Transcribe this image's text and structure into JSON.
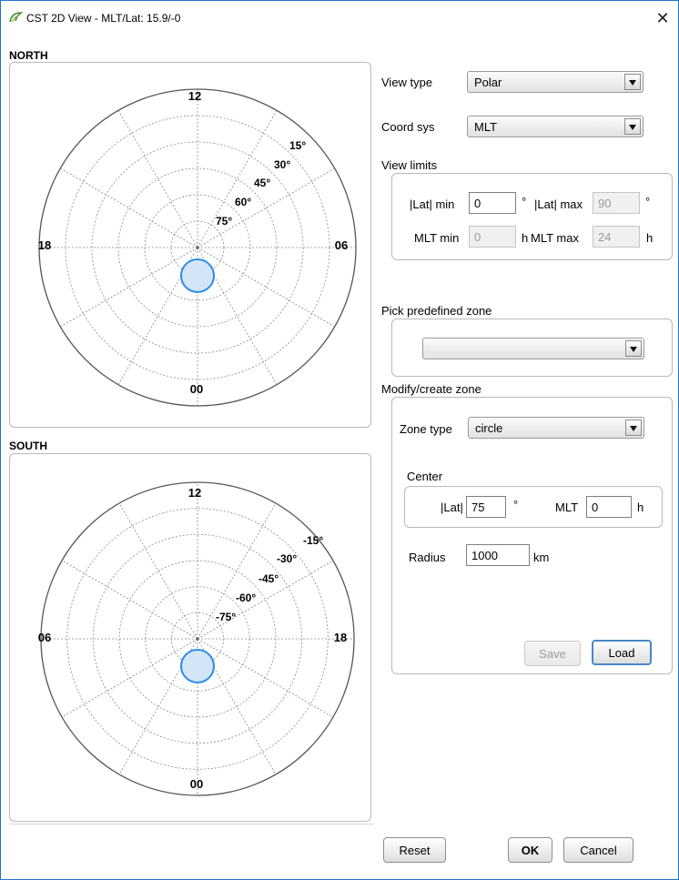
{
  "window": {
    "title": "CST 2D View - MLT/Lat: 15.9/-0",
    "close_symbol": "✕"
  },
  "north": {
    "label": "NORTH",
    "top_label": "12",
    "left_label": "18",
    "right_label": "06",
    "bottom_label": "00",
    "lat_labels": [
      "15°",
      "30°",
      "45°",
      "60°",
      "75°"
    ]
  },
  "south": {
    "label": "SOUTH",
    "top_label": "12",
    "left_label": "06",
    "right_label": "18",
    "bottom_label": "00",
    "lat_labels": [
      "-15°",
      "-30°",
      "-45°",
      "-60°",
      "-75°"
    ]
  },
  "controls": {
    "view_type_label": "View type",
    "view_type_value": "Polar",
    "coord_sys_label": "Coord sys",
    "coord_sys_value": "MLT",
    "view_limits": {
      "title": "View limits",
      "lat_min_label": "|Lat| min",
      "lat_min_value": "0",
      "deg1": "°",
      "lat_max_label": "|Lat| max",
      "lat_max_value": "90",
      "deg2": "°",
      "mlt_min_label": "MLT min",
      "mlt_min_value": "0",
      "h1": "h",
      "mlt_max_label": "MLT max",
      "mlt_max_value": "24",
      "h2": "h"
    },
    "predefined": {
      "title": "Pick predefined zone",
      "value": ""
    },
    "modify": {
      "title": "Modify/create zone",
      "zone_type_label": "Zone type",
      "zone_type_value": "circle",
      "center_title": "Center",
      "lat_label": "|Lat|",
      "lat_value": "75",
      "lat_unit": "°",
      "mlt_label": "MLT",
      "mlt_value": "0",
      "mlt_unit": "h",
      "radius_label": "Radius",
      "radius_value": "1000",
      "radius_unit": "km",
      "save_label": "Save",
      "load_label": "Load"
    }
  },
  "footer": {
    "reset_label": "Reset",
    "ok_label": "OK",
    "cancel_label": "Cancel"
  },
  "colors": {
    "zone_fill": "#d3e5f6",
    "zone_stroke": "#2d8ce6",
    "accent": "#1e73c7"
  }
}
